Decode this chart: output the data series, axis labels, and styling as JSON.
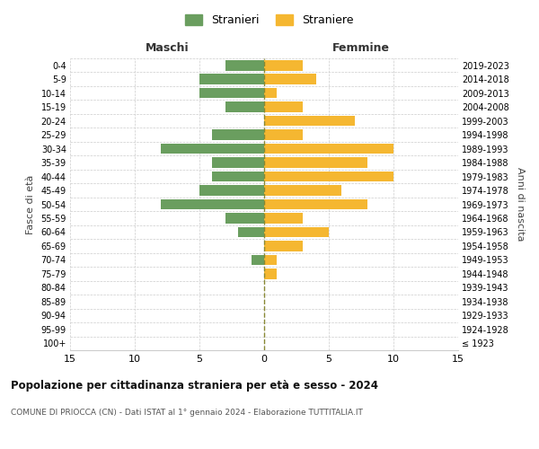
{
  "age_groups": [
    "100+",
    "95-99",
    "90-94",
    "85-89",
    "80-84",
    "75-79",
    "70-74",
    "65-69",
    "60-64",
    "55-59",
    "50-54",
    "45-49",
    "40-44",
    "35-39",
    "30-34",
    "25-29",
    "20-24",
    "15-19",
    "10-14",
    "5-9",
    "0-4"
  ],
  "birth_years": [
    "≤ 1923",
    "1924-1928",
    "1929-1933",
    "1934-1938",
    "1939-1943",
    "1944-1948",
    "1949-1953",
    "1954-1958",
    "1959-1963",
    "1964-1968",
    "1969-1973",
    "1974-1978",
    "1979-1983",
    "1984-1988",
    "1989-1993",
    "1994-1998",
    "1999-2003",
    "2004-2008",
    "2009-2013",
    "2014-2018",
    "2019-2023"
  ],
  "maschi": [
    0,
    0,
    0,
    0,
    0,
    0,
    1,
    0,
    2,
    3,
    8,
    5,
    4,
    4,
    8,
    4,
    0,
    3,
    5,
    5,
    3
  ],
  "femmine": [
    0,
    0,
    0,
    0,
    0,
    1,
    1,
    3,
    5,
    3,
    8,
    6,
    10,
    8,
    10,
    3,
    7,
    3,
    1,
    4,
    3
  ],
  "color_maschi": "#6a9e5f",
  "color_femmine": "#f5b731",
  "title": "Popolazione per cittadinanza straniera per età e sesso - 2024",
  "subtitle": "COMUNE DI PRIOCCA (CN) - Dati ISTAT al 1° gennaio 2024 - Elaborazione TUTTITALIA.IT",
  "xlabel_left": "Maschi",
  "xlabel_right": "Femmine",
  "ylabel_left": "Fasce di età",
  "ylabel_right": "Anni di nascita",
  "xlim": 15,
  "legend_stranieri": "Stranieri",
  "legend_straniere": "Straniere",
  "background_color": "#ffffff",
  "grid_color": "#cccccc"
}
